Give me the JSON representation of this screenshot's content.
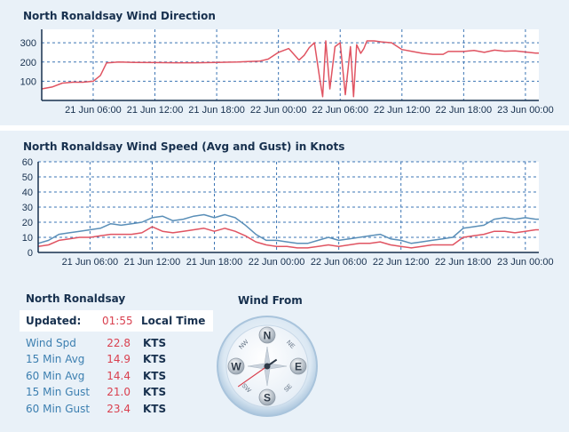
{
  "colors": {
    "direction_line": "#e05462",
    "avg_line": "#e05462",
    "gust_line": "#5a8fb8",
    "grid": "#3b74b4",
    "axis": "#17304e",
    "panel_bg": "#e9f1f8"
  },
  "direction_chart": {
    "title": "North Ronaldsay Wind Direction",
    "y_ticks": [
      "300",
      "200",
      "100"
    ],
    "x_ticks": [
      "21 Jun 06:00",
      "21 Jun 12:00",
      "21 Jun 18:00",
      "22 Jun 00:00",
      "22 Jun 06:00",
      "22 Jun 12:00",
      "22 Jun 18:00",
      "23 Jun 00:00"
    ]
  },
  "speed_chart": {
    "title": "North Ronaldsay Wind Speed (Avg and Gust) in Knots",
    "y_ticks": [
      "60",
      "50",
      "40",
      "30",
      "20",
      "10",
      "0"
    ],
    "x_ticks": [
      "21 Jun 06:00",
      "21 Jun 12:00",
      "21 Jun 18:00",
      "22 Jun 00:00",
      "22 Jun 06:00",
      "22 Jun 12:00",
      "22 Jun 18:00",
      "23 Jun 00:00"
    ]
  },
  "chart_data": [
    {
      "type": "line",
      "title": "North Ronaldsay Wind Direction",
      "xlabel": "",
      "ylabel": "",
      "x_unit": "hours since 21 Jun 00:00",
      "xlim": [
        1.0,
        49.3
      ],
      "ylim": [
        0,
        370
      ],
      "series": [
        {
          "name": "Direction",
          "x": [
            1.0,
            2.0,
            3.0,
            4.0,
            5.0,
            6.0,
            6.7,
            7.3,
            8.5,
            10,
            12,
            14,
            16,
            18,
            20,
            21,
            22.2,
            23,
            24,
            25,
            26,
            26.5,
            27,
            27.5,
            28,
            28.3,
            28.6,
            29,
            29.5,
            30,
            30.5,
            31,
            31.3,
            31.6,
            32,
            32.3,
            32.6,
            33,
            33.3,
            34,
            35,
            36,
            37,
            38,
            39,
            40,
            40.5,
            41,
            42,
            43,
            44,
            45,
            46,
            47,
            48,
            49,
            49.3
          ],
          "y": [
            60,
            70,
            90,
            95,
            95,
            100,
            130,
            195,
            200,
            198,
            197,
            196,
            196,
            198,
            200,
            202,
            205,
            215,
            250,
            270,
            210,
            235,
            275,
            300,
            120,
            20,
            310,
            60,
            280,
            300,
            30,
            280,
            20,
            290,
            245,
            270,
            310,
            310,
            310,
            305,
            300,
            265,
            255,
            245,
            240,
            240,
            255,
            255,
            255,
            260,
            250,
            262,
            256,
            258,
            252,
            246,
            246
          ]
        }
      ]
    },
    {
      "type": "line",
      "title": "North Ronaldsay Wind Speed (Avg and Gust) in Knots",
      "xlabel": "",
      "ylabel": "Knots",
      "x_unit": "hours since 21 Jun 00:00",
      "xlim": [
        1.0,
        49.3
      ],
      "ylim": [
        0,
        60
      ],
      "series": [
        {
          "name": "Gust",
          "x": [
            1.0,
            2.0,
            3.0,
            4.0,
            5.0,
            6.0,
            7.0,
            8.0,
            9.0,
            10,
            11,
            12,
            13,
            14,
            15,
            16,
            17,
            18,
            19,
            20,
            21,
            22,
            23,
            24,
            25,
            26,
            27,
            28,
            29,
            30,
            31,
            32,
            33,
            34,
            35,
            36,
            37,
            38,
            39,
            40,
            41,
            42,
            43,
            44,
            45,
            46,
            47,
            48,
            49,
            49.3
          ],
          "y": [
            6,
            8,
            12,
            13,
            14,
            15,
            16,
            19,
            18,
            19,
            20,
            23,
            24,
            21,
            22,
            24,
            25,
            23,
            25,
            23,
            18,
            12,
            8,
            8,
            7,
            6,
            6,
            8,
            10,
            8,
            9,
            10,
            11,
            12,
            9,
            8,
            6,
            7,
            8,
            9,
            10,
            16,
            17,
            18,
            22,
            23,
            22,
            23,
            22,
            22
          ]
        },
        {
          "name": "Avg",
          "x": [
            1.0,
            2.0,
            3.0,
            4.0,
            5.0,
            6.0,
            7.0,
            8.0,
            9.0,
            10,
            11,
            12,
            13,
            14,
            15,
            16,
            17,
            18,
            19,
            20,
            21,
            22,
            23,
            24,
            25,
            26,
            27,
            28,
            29,
            30,
            31,
            32,
            33,
            34,
            35,
            36,
            37,
            38,
            39,
            40,
            41,
            42,
            43,
            44,
            45,
            46,
            47,
            48,
            49,
            49.3
          ],
          "y": [
            4,
            5,
            8,
            9,
            10,
            10,
            11,
            12,
            12,
            12,
            13,
            17,
            14,
            13,
            14,
            15,
            16,
            14,
            16,
            14,
            11,
            7,
            5,
            4,
            4,
            3,
            3,
            4,
            5,
            4,
            5,
            6,
            6,
            7,
            5,
            4,
            3,
            4,
            5,
            5,
            5,
            10,
            11,
            12,
            14,
            14,
            13,
            14,
            15,
            15
          ]
        }
      ]
    }
  ],
  "station": {
    "name": "North Ronaldsay",
    "updated_label": "Updated:",
    "updated_time": "01:55",
    "local_time_label": "Local Time"
  },
  "stats": [
    {
      "label": "Wind Spd",
      "value": "22.8",
      "unit": "KTS"
    },
    {
      "label": "15 Min Avg",
      "value": "14.9",
      "unit": "KTS"
    },
    {
      "label": "60 Min Avg",
      "value": "14.4",
      "unit": "KTS"
    },
    {
      "label": "15 Min Gust",
      "value": "21.0",
      "unit": "KTS"
    },
    {
      "label": "60 Min Gust",
      "value": "23.4",
      "unit": "KTS"
    }
  ],
  "compass": {
    "title": "Wind From",
    "cardinals": {
      "n": "N",
      "e": "E",
      "s": "S",
      "w": "W"
    },
    "intercardinals": {
      "ne": "NE",
      "se": "SE",
      "sw": "SW",
      "nw": "NW"
    },
    "needle_bearing_deg": 235
  }
}
